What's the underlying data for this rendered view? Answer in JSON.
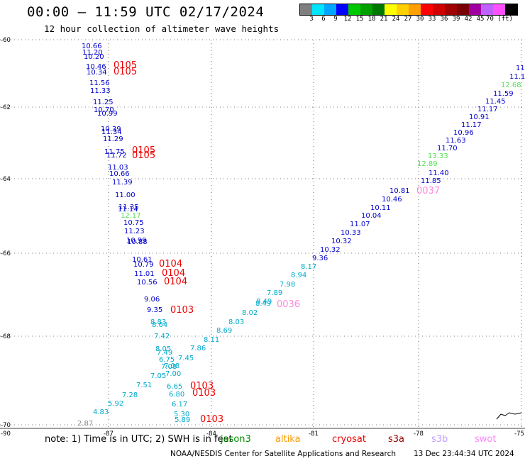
{
  "title": "00:00 – 11:59 UTC 02/17/2024",
  "subtitle": "12 hour collection of altimeter wave heights",
  "colorbar": {
    "colors": [
      "#7f7f7f",
      "#00e5ff",
      "#00a6ff",
      "#0000ff",
      "#00c800",
      "#00a000",
      "#007800",
      "#ffff00",
      "#ffd000",
      "#ffa000",
      "#ff0000",
      "#d00000",
      "#a00000",
      "#780000",
      "#a000a0",
      "#c060ff",
      "#ff50ff",
      "#000000"
    ],
    "labels": [
      "3",
      "6",
      "9",
      "12",
      "15",
      "18",
      "21",
      "24",
      "27",
      "30",
      "33",
      "36",
      "39",
      "42",
      "45",
      "70 (ft)"
    ]
  },
  "axes": {
    "lat_labels": [
      "-60",
      "-62",
      "-64",
      "-66",
      "-68",
      "-70"
    ],
    "lon_labels": [
      "-90",
      "-87",
      "-84",
      "-81",
      "-78",
      "-75"
    ]
  },
  "tracks": {
    "jason_west": {
      "color": "#0000cc",
      "values": [
        "10.66",
        "11.20",
        "10.20",
        "10.46",
        "10.34",
        "11.56",
        "11.33",
        "11.25",
        "10.70",
        "10.99",
        "10.39",
        "11.34",
        "11.29",
        "11.75",
        "11.72",
        "11.03",
        "10.66",
        "11.39",
        "11.00",
        "11.35",
        "11.14",
        "10.75",
        "11.23",
        "10.99",
        "10.88",
        "10.61",
        "10.79",
        "11.01",
        "10.56",
        "9.06",
        "9.35"
      ]
    },
    "jason_west_green": {
      "color": "#55dd55",
      "values": [
        "12.17"
      ]
    },
    "jason_west_cyan": {
      "color": "#00aacc",
      "values": [
        "8.83",
        "8.64",
        "7.42",
        "8.05",
        "7.49",
        "6.75",
        "7.45",
        "7.08",
        "7.08",
        "7.00",
        "7.05",
        "7.51",
        "7.28",
        "6.65",
        "6.80",
        "6.17",
        "5.92",
        "5.30",
        "5.89",
        "4.83"
      ]
    },
    "jason_west_grey": {
      "color": "#888888",
      "values": [
        "2.87"
      ]
    },
    "swot_diag": {
      "color": "#0000cc",
      "values": [
        "11.59",
        "11.45",
        "11.17",
        "10.91",
        "11.17",
        "10.96",
        "11.63",
        "11.70",
        "11.40",
        "11.85",
        "10.81",
        "10.46",
        "10.11",
        "10.04",
        "11.07",
        "10.33",
        "10.32",
        "10.32",
        "9.36"
      ]
    },
    "swot_green": {
      "color": "#55dd55",
      "values": [
        "12.68",
        "13.33",
        "12.89"
      ]
    },
    "swot_cyan": {
      "color": "#00aacc",
      "values": [
        "8.17",
        "8.94",
        "7.98",
        "7.89",
        "8.49",
        "8.49",
        "8.02",
        "8.03",
        "8.69",
        "8.11",
        "7.86"
      ]
    },
    "top_right": {
      "color": "#0000cc",
      "values": [
        "11",
        "11.1"
      ]
    }
  },
  "passes": {
    "red": [
      "0105",
      "0105",
      "0105",
      "0105",
      "0104",
      "0104",
      "0104",
      "0103",
      "0103",
      "0103",
      "0103"
    ],
    "pink": [
      "0037",
      "0036"
    ]
  },
  "note": {
    "prefix": "note: 1) Time is in UTC; 2) SWH is in feet",
    "missions": [
      {
        "name": "jason3",
        "color": "#009000"
      },
      {
        "name": "altika",
        "color": "#ff9900"
      },
      {
        "name": "cryosat",
        "color": "#ee0000"
      },
      {
        "name": "s3a",
        "color": "#990000"
      },
      {
        "name": "s3b",
        "color": "#c0a0ff"
      },
      {
        "name": "swot",
        "color": "#ff88ff"
      }
    ]
  },
  "footer": "NOAA/NESDIS Center for Satellite Applications and Research",
  "footer_timestamp": "13 Dec 23:44:34 UTC 2024"
}
